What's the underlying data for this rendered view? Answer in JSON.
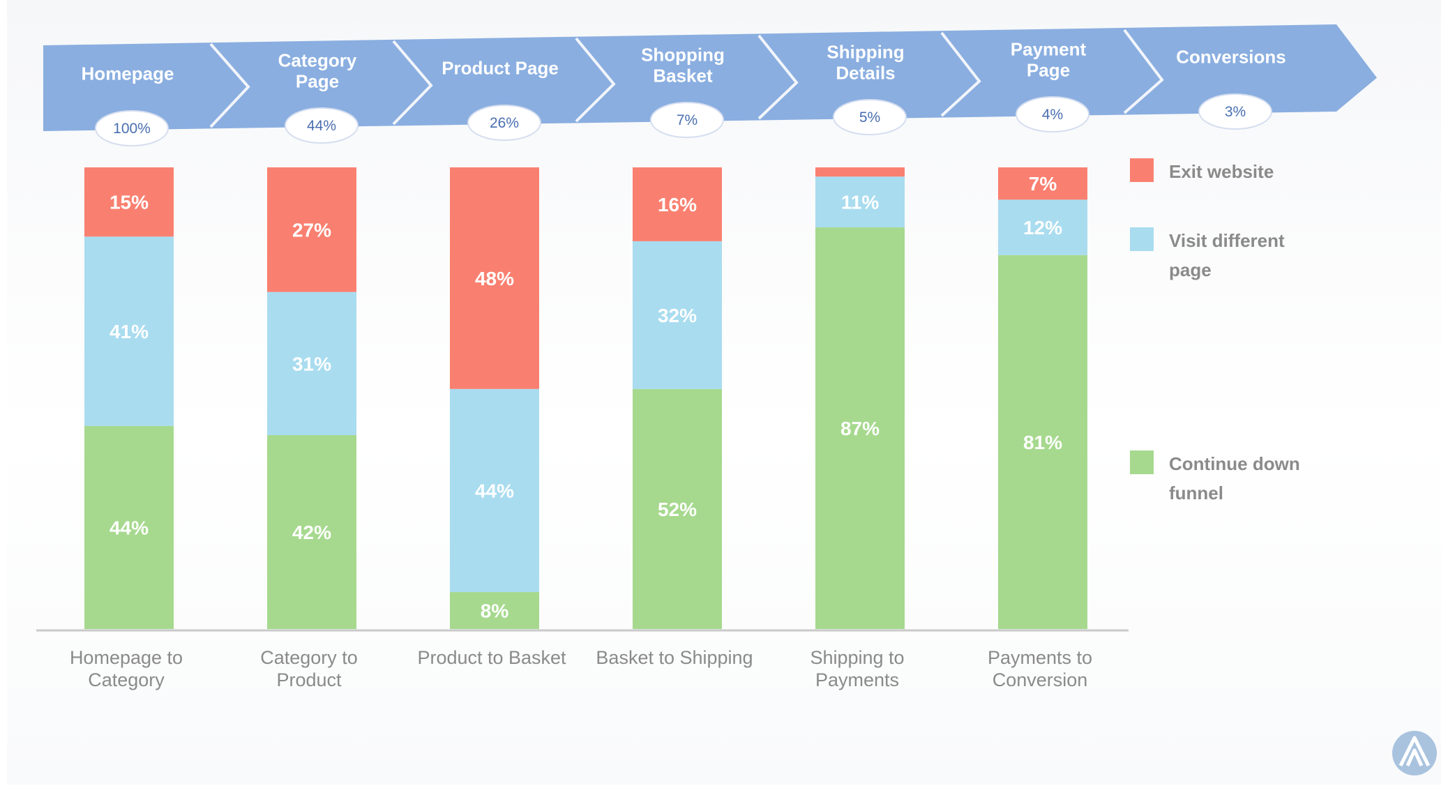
{
  "funnel": {
    "stages": [
      {
        "lines": [
          "Homepage"
        ],
        "pct": "100%"
      },
      {
        "lines": [
          "Category",
          "Page"
        ],
        "pct": "44%"
      },
      {
        "lines": [
          "Product Page"
        ],
        "pct": "26%"
      },
      {
        "lines": [
          "Shopping",
          "Basket"
        ],
        "pct": "7%"
      },
      {
        "lines": [
          "Shipping",
          "Details"
        ],
        "pct": "5%"
      },
      {
        "lines": [
          "Payment",
          "Page"
        ],
        "pct": "4%"
      },
      {
        "lines": [
          "Conversions"
        ],
        "pct": "3%"
      }
    ],
    "arrow_color": "#8aaee0"
  },
  "chart_data": {
    "type": "bar",
    "stacked": true,
    "categories": [
      [
        "Homepage to",
        "Category"
      ],
      [
        "Category to",
        "Product"
      ],
      [
        "Product to Basket"
      ],
      [
        "Basket to Shipping"
      ],
      [
        "Shipping to",
        "Payments"
      ],
      [
        "Payments to",
        "Conversion"
      ]
    ],
    "series": [
      {
        "name": "Continue down funnel",
        "legend_lines": [
          "Continue down",
          "funnel"
        ],
        "color": "#a6d98e",
        "values": [
          44,
          42,
          8,
          52,
          87,
          81
        ],
        "labels": [
          "44%",
          "42%",
          "8%",
          "52%",
          "87%",
          "81%"
        ]
      },
      {
        "name": "Visit different page",
        "legend_lines": [
          "Visit different",
          "page"
        ],
        "color": "#a9dcef",
        "values": [
          41,
          31,
          44,
          32,
          11,
          12
        ],
        "labels": [
          "41%",
          "31%",
          "44%",
          "32%",
          "11%",
          "12%"
        ]
      },
      {
        "name": "Exit website",
        "legend_lines": [
          "Exit website"
        ],
        "color": "#f98070",
        "values": [
          15,
          27,
          48,
          16,
          2,
          7
        ],
        "labels": [
          "15%",
          "27%",
          "48%",
          "16%",
          "",
          "7%"
        ]
      }
    ],
    "ylim": [
      0,
      100
    ],
    "legend_position": "right"
  },
  "logo_icon": "brand-logo-icon"
}
